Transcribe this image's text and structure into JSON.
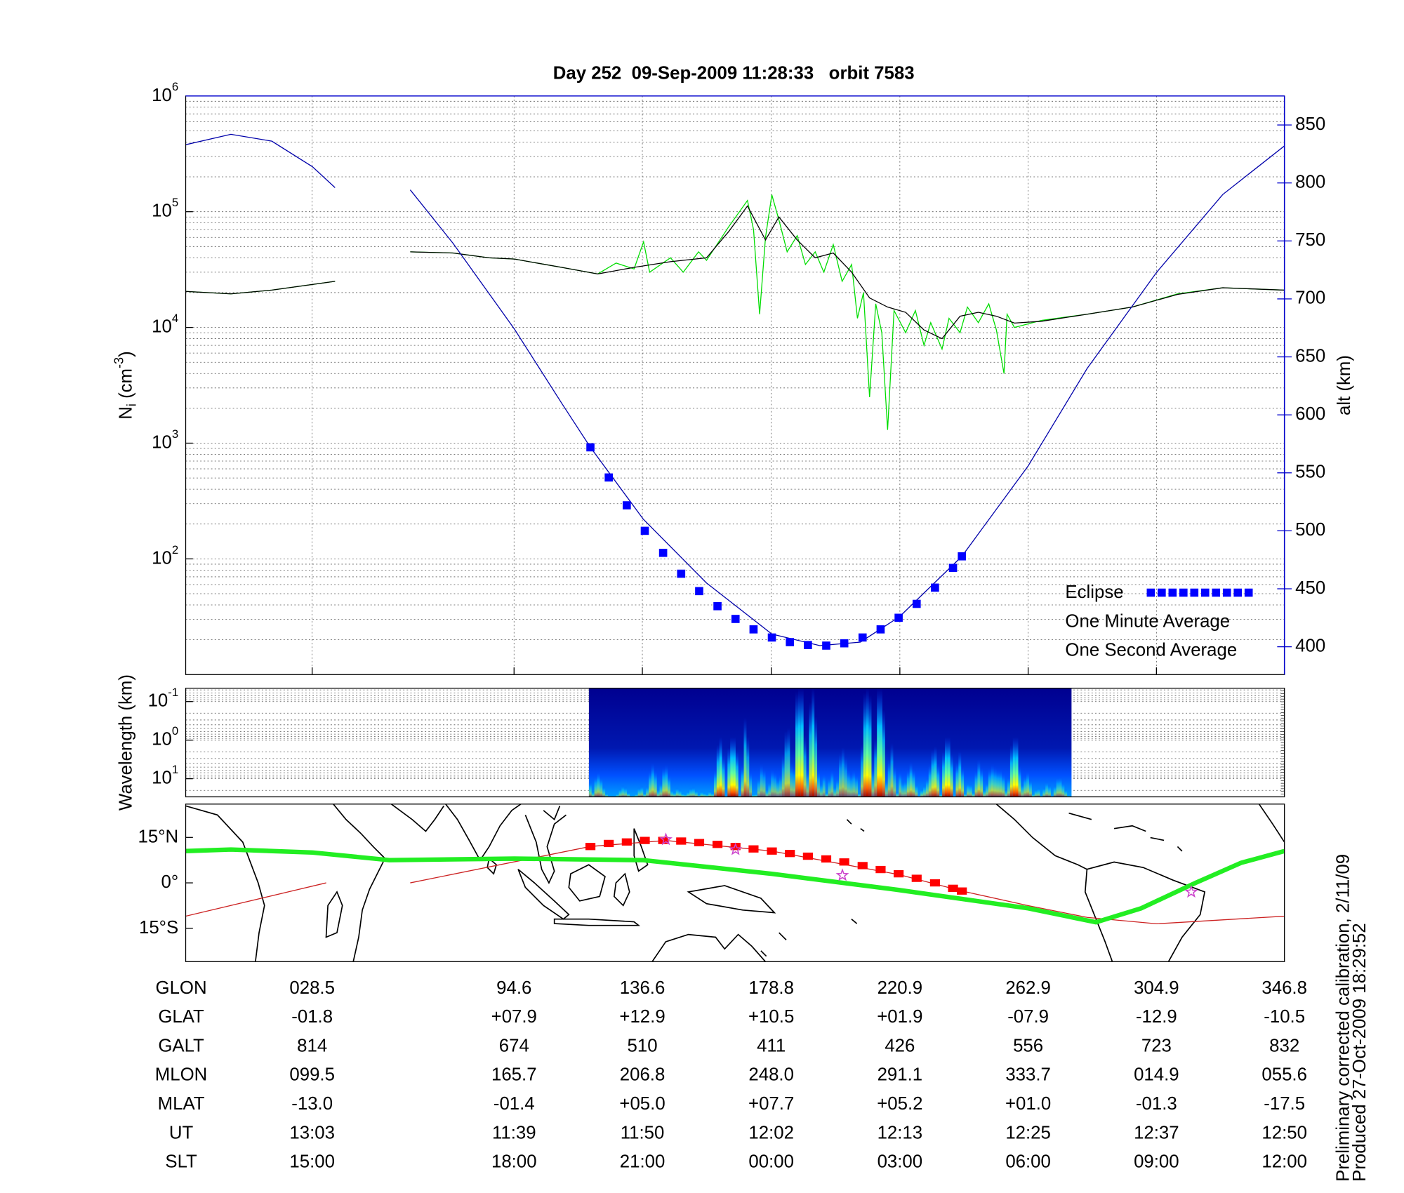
{
  "chart_data": [
    {
      "type": "line",
      "title": "Day 252  09-Sep-2009 11:28:33   orbit 7583",
      "ylabel": {
        "text": "N",
        "sub": "i",
        "unit": " (cm",
        "sup": "-3",
        "close": ")"
      },
      "y2label": "alt (km)",
      "log_y": true,
      "grid": true,
      "xgrid": true,
      "legend": "lower right",
      "xlim": [
        -12.9,
        346.8
      ],
      "xticks": [
        {
          "value": 28.5,
          "label": "028.5"
        },
        94.6,
        136.6,
        178.8,
        220.9,
        262.9,
        304.9,
        346.8
      ],
      "ylim": [
        10,
        1000000
      ],
      "yticks": [
        {
          "value": 100,
          "label": "10",
          "exponent": "2"
        },
        {
          "value": 1000,
          "label": "10",
          "exponent": "3"
        },
        {
          "value": 10000,
          "label": "10",
          "exponent": "4"
        },
        {
          "value": 100000,
          "label": "10",
          "exponent": "5"
        },
        {
          "value": 1000000,
          "label": "10",
          "exponent": "6"
        }
      ],
      "y2lim": [
        376,
        875
      ],
      "y2ticks": [
        400,
        450,
        500,
        550,
        600,
        650,
        700,
        750,
        800,
        850
      ],
      "series": [
        {
          "color": "#0000aa",
          "axis": "y2",
          "x": [
            -12.9,
            1.9,
            15.3,
            28.6,
            36.0,
            48.0,
            60.6,
            74.6,
            94.7,
            110.2,
            119.6,
            136.9,
            157.6,
            179.0,
            194.7,
            208.0,
            220.8,
            241.2,
            262.9,
            282.2,
            305.0,
            326.6,
            346.8
          ],
          "values": [
            833,
            842,
            836,
            814,
            796,
            null,
            794,
            748,
            674,
            610,
            572,
            510,
            455,
            411,
            401,
            404,
            426,
            478,
            556,
            640,
            723,
            790,
            832
          ]
        },
        {
          "name": "Eclipse",
          "color": "#0000ff",
          "axis": "y2",
          "marker": "square",
          "x": [
            119.6,
            125.6,
            131.5,
            137.4,
            143.4,
            149.3,
            155.2,
            161.2,
            167.1,
            173.0,
            179.0,
            184.9,
            190.8,
            196.8,
            202.7,
            208.7,
            214.6,
            220.5,
            226.4,
            232.4,
            238.3,
            241.2
          ],
          "values": [
            572,
            546,
            522,
            500,
            481,
            463,
            448,
            435,
            424,
            415,
            408,
            404,
            401.5,
            401,
            403,
            408,
            415,
            425,
            437,
            451,
            468,
            478
          ]
        },
        {
          "name": "One Minute Average",
          "color": "#000000",
          "x": [
            -12.9,
            1.9,
            15.3,
            36.0,
            48.0,
            60.6,
            74.6,
            86.4,
            94.7,
            110.2,
            122.0,
            133.9,
            145.8,
            157.6,
            165.0,
            171.0,
            176.9,
            181.3,
            187.3,
            193.2,
            199.1,
            205.1,
            211.0,
            216.9,
            222.8,
            228.8,
            234.7,
            240.6,
            246.6,
            252.5,
            258.4,
            267.3,
            282.2,
            297.0,
            311.8,
            326.6,
            346.8
          ],
          "values": [
            20500,
            19500,
            21000,
            25000,
            null,
            45000,
            44000,
            40000,
            39000,
            33000,
            29000,
            33000,
            37000,
            40000,
            68000,
            112000,
            57000,
            90000,
            57000,
            40000,
            44000,
            30000,
            18000,
            15000,
            13500,
            9500,
            8000,
            12500,
            13500,
            12500,
            10900,
            11300,
            13000,
            15000,
            19300,
            22000,
            21000
          ]
        },
        {
          "name": "One Second Average",
          "color": "#00dd00",
          "x": [
            -12.9,
            1.9,
            15.3,
            36.0,
            48.0,
            60.6,
            74.6,
            86.4,
            94.7,
            110.2,
            122.0,
            128.0,
            133.9,
            137.0,
            139.0,
            145.8,
            150.0,
            155.0,
            157.6,
            165.0,
            171.0,
            173.0,
            175.0,
            176.9,
            179.0,
            181.3,
            184.0,
            187.3,
            190.0,
            193.2,
            196.0,
            199.1,
            202.0,
            205.1,
            207.0,
            209.0,
            211.0,
            213.0,
            215.0,
            216.9,
            219.0,
            222.8,
            226.0,
            228.8,
            231.0,
            234.7,
            237.0,
            240.6,
            243.0,
            246.6,
            250.0,
            252.5,
            255.0,
            256.0,
            258.4,
            267.3,
            282.2,
            297.0,
            311.8,
            326.6,
            346.8
          ],
          "values": [
            20500,
            19500,
            21000,
            25000,
            null,
            45000,
            44000,
            40000,
            39000,
            33000,
            29000,
            36000,
            32000,
            55000,
            30000,
            40000,
            30000,
            45000,
            38000,
            75000,
            125000,
            70000,
            13000,
            60000,
            140000,
            85000,
            45000,
            62000,
            35000,
            45000,
            30000,
            52000,
            25000,
            35000,
            12000,
            20000,
            2500,
            16000,
            9000,
            1300,
            14000,
            9000,
            14000,
            7000,
            11000,
            6500,
            12000,
            9000,
            15000,
            11000,
            16000,
            9500,
            4000,
            13000,
            10000,
            11500,
            13000,
            15000,
            19500,
            22000,
            21000
          ]
        }
      ]
    },
    {
      "type": "spectrogram",
      "ylabel": "Wavelength (km)",
      "log_y": true,
      "invert_y": true,
      "grid": true,
      "xlim": [
        -12.9,
        346.8
      ],
      "ylim": [
        0.045,
        29.5
      ],
      "yticks": [
        {
          "value": 0.1,
          "label": "10",
          "exponent": "-1"
        },
        {
          "value": 1,
          "label": "10",
          "exponent": "0"
        },
        {
          "value": 10,
          "label": "10",
          "exponent": "1"
        }
      ],
      "extent_x": [
        119.1,
        277.1
      ]
    },
    {
      "type": "map",
      "xlim": [
        -12.9,
        346.8
      ],
      "ylim": [
        -26,
        26
      ],
      "yticks": [
        {
          "value": 15,
          "label": "15°N"
        },
        {
          "value": 0,
          "label": "0°"
        },
        {
          "value": -15,
          "label": "15°S"
        }
      ],
      "series": [
        {
          "color": "#cc2222",
          "x": [
            -12.9,
            33.1,
            48.0,
            60.6,
            119.6,
            144.3,
            179.0,
            220.8,
            241.2,
            262.9,
            282.2,
            305.0,
            346.8
          ],
          "values": [
            -11,
            0,
            null,
            0,
            12,
            14,
            10.5,
            2.7,
            -2.7,
            -7.5,
            -11.4,
            -13.5,
            -11
          ]
        },
        {
          "color": "#22ee22",
          "width": 5,
          "x": [
            -12.9,
            1.9,
            28.6,
            53.8,
            94.7,
            136.9,
            179.0,
            220.8,
            262.9,
            285.1,
            299.9,
            317.7,
            332.6,
            346.8
          ],
          "values": [
            10.5,
            11,
            10,
            7.5,
            8,
            7.5,
            3,
            -2.4,
            -8.4,
            -13,
            -8.4,
            0,
            6.6,
            10.5
          ]
        },
        {
          "color": "#ff0000",
          "marker": "square",
          "x": [
            119.6,
            125.6,
            131.5,
            137.4,
            143.4,
            149.3,
            155.2,
            161.2,
            167.1,
            173.0,
            179.0,
            184.9,
            190.8,
            196.8,
            202.7,
            208.7,
            214.6,
            220.5,
            226.4,
            232.4,
            238.3,
            241.2
          ],
          "values": [
            12,
            13,
            13.5,
            14,
            14,
            13.8,
            13.3,
            12.7,
            12,
            11.2,
            10.5,
            9.7,
            8.8,
            7.9,
            6.9,
            5.7,
            4.4,
            3.0,
            1.5,
            0,
            -1.8,
            -2.7
          ]
        },
        {
          "color": "#cc44cc",
          "marker": "star",
          "x": [
            144.3,
            167.1,
            202.1,
            316.3
          ],
          "values": [
            14.3,
            11,
            2.5,
            -3
          ]
        }
      ]
    }
  ],
  "table": {
    "glon_label": "GLON",
    "rows": [
      {
        "label": "GLAT",
        "values": [
          "-01.8",
          "+07.9",
          "+12.9",
          "+10.5",
          "+01.9",
          "-07.9",
          "-12.9",
          "-10.5"
        ]
      },
      {
        "label": "GALT",
        "values": [
          "814",
          "674",
          "510",
          "411",
          "426",
          "556",
          "723",
          "832"
        ]
      },
      {
        "label": "MLON",
        "values": [
          "099.5",
          "165.7",
          "206.8",
          "248.0",
          "291.1",
          "333.7",
          "014.9",
          "055.6"
        ]
      },
      {
        "label": "MLAT",
        "values": [
          "-13.0",
          "-01.4",
          "+05.0",
          "+07.7",
          "+05.2",
          "+01.0",
          "-01.3",
          "-17.5"
        ]
      },
      {
        "label": "UT",
        "values": [
          "13:03",
          "11:39",
          "11:50",
          "12:02",
          "12:13",
          "12:25",
          "12:37",
          "12:50"
        ]
      },
      {
        "label": "SLT",
        "values": [
          "15:00",
          "18:00",
          "21:00",
          "00:00",
          "03:00",
          "06:00",
          "09:00",
          "12:00"
        ]
      }
    ]
  },
  "footer": [
    "Preliminary corrected calibration, 2/11/09",
    "Produced 27-Oct-2009 18:29:52"
  ]
}
